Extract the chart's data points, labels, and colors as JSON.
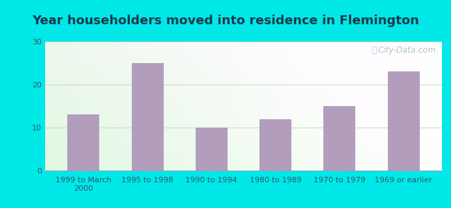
{
  "categories": [
    "1999 to March\n2000",
    "1995 to 1998",
    "1990 to 1994",
    "1980 to 1989",
    "1970 to 1979",
    "1969 or earlier"
  ],
  "values": [
    13,
    25,
    10,
    12,
    15,
    23
  ],
  "bar_color": "#b39dbd",
  "title": "Year householders moved into residence in Flemington",
  "ylim": [
    0,
    30
  ],
  "yticks": [
    0,
    10,
    20,
    30
  ],
  "outer_bg": "#00e8e8",
  "plot_bg_color": "#f0faf0",
  "watermark": "City-Data.com",
  "title_fontsize": 13,
  "tick_fontsize": 8,
  "title_color": "#1a3a4a",
  "tick_color": "#2a5a6a",
  "grid_color": "#d0e8d0"
}
